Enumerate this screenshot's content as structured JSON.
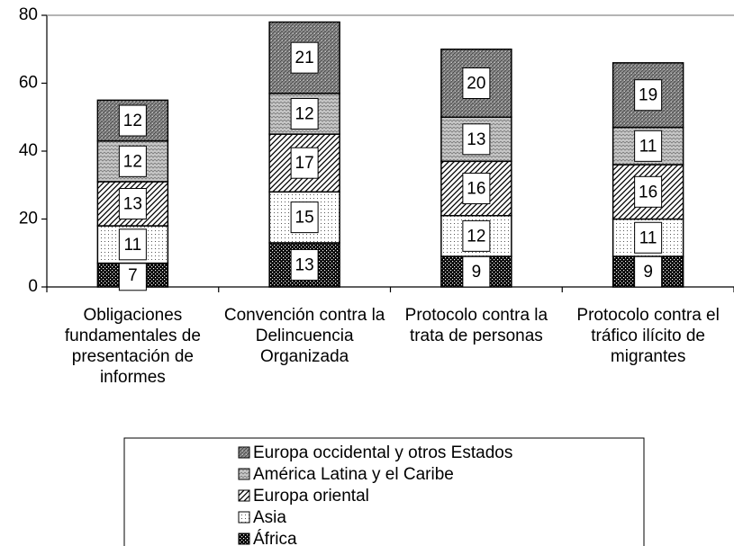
{
  "chart_data": {
    "type": "stacked_bar",
    "categories": [
      "Obligaciones fundamentales de presentación de informes",
      "Convención contra la Delincuencia Organizada",
      "Protocolo contra la trata de personas",
      "Protocolo contra el tráfico ilícito de migrantes"
    ],
    "series": [
      {
        "name": "África",
        "color": "#000000",
        "values": [
          7,
          13,
          9,
          9
        ]
      },
      {
        "name": "Asia",
        "color": "#ffffff",
        "values": [
          11,
          15,
          12,
          11
        ]
      },
      {
        "name": "Europa oriental",
        "color": "#ffffff",
        "values": [
          13,
          17,
          16,
          16
        ]
      },
      {
        "name": "América Latina y el Caribe",
        "color": "#c8c8c8",
        "values": [
          12,
          12,
          13,
          11
        ]
      },
      {
        "name": "Europa occidental y otros Estados",
        "color": "#8c8c8c",
        "values": [
          12,
          21,
          20,
          19
        ]
      }
    ],
    "ylim": [
      0,
      80
    ],
    "yticks": [
      0,
      20,
      40,
      60,
      80
    ],
    "grid": false,
    "legend": "bottom"
  }
}
